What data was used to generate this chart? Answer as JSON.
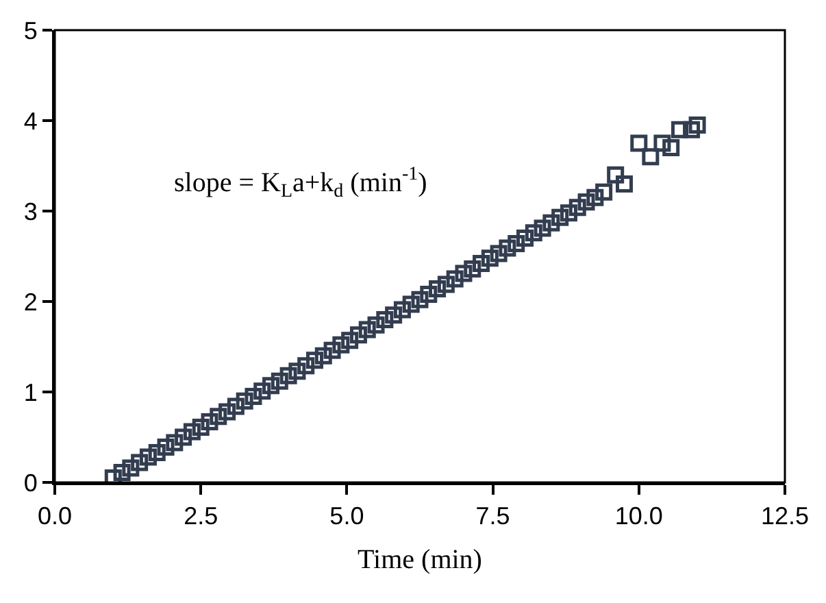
{
  "chart_data": {
    "type": "scatter",
    "xlabel": "Time (min)",
    "annotations": [
      "slope = K$_{L}$a+k$_{d}$ (min$^{-1}$)"
    ],
    "x": [
      1.0,
      1.15,
      1.3,
      1.45,
      1.6,
      1.75,
      1.9,
      2.05,
      2.2,
      2.35,
      2.5,
      2.65,
      2.8,
      2.95,
      3.1,
      3.25,
      3.4,
      3.55,
      3.7,
      3.85,
      4.0,
      4.15,
      4.3,
      4.45,
      4.6,
      4.75,
      4.9,
      5.05,
      5.2,
      5.35,
      5.5,
      5.65,
      5.8,
      5.95,
      6.1,
      6.25,
      6.4,
      6.55,
      6.7,
      6.85,
      7.0,
      7.15,
      7.3,
      7.45,
      7.6,
      7.75,
      7.9,
      8.05,
      8.2,
      8.35,
      8.5,
      8.65,
      8.8,
      8.95,
      9.1,
      9.25,
      9.4,
      9.6,
      9.75,
      10.0,
      10.2,
      10.4,
      10.55,
      10.7,
      10.9,
      11.0
    ],
    "series": [
      {
        "color": "#333d50",
        "values": [
          0.05,
          0.11,
          0.16,
          0.22,
          0.28,
          0.33,
          0.39,
          0.44,
          0.5,
          0.56,
          0.61,
          0.67,
          0.73,
          0.78,
          0.84,
          0.9,
          0.95,
          1.01,
          1.07,
          1.12,
          1.18,
          1.23,
          1.29,
          1.35,
          1.4,
          1.46,
          1.52,
          1.57,
          1.63,
          1.69,
          1.74,
          1.8,
          1.85,
          1.91,
          1.97,
          2.02,
          2.08,
          2.14,
          2.19,
          2.25,
          2.31,
          2.36,
          2.42,
          2.48,
          2.53,
          2.59,
          2.64,
          2.7,
          2.76,
          2.81,
          2.87,
          2.93,
          2.98,
          3.04,
          3.1,
          3.15,
          3.21,
          3.4,
          3.3,
          3.75,
          3.6,
          3.75,
          3.7,
          3.9,
          3.9,
          3.95
        ]
      }
    ],
    "xlim": [
      0,
      12.5
    ],
    "xticks": [
      {
        "value": 0,
        "label": "0.0"
      },
      2.5,
      {
        "value": 5,
        "label": "5.0"
      },
      7.5,
      {
        "value": 10,
        "label": "10.0"
      },
      12.5
    ],
    "ylim": [
      0,
      5
    ],
    "yticks": [
      0,
      1,
      2,
      3,
      4,
      5
    ],
    "grid": false,
    "legend": false,
    "marker": "square"
  }
}
